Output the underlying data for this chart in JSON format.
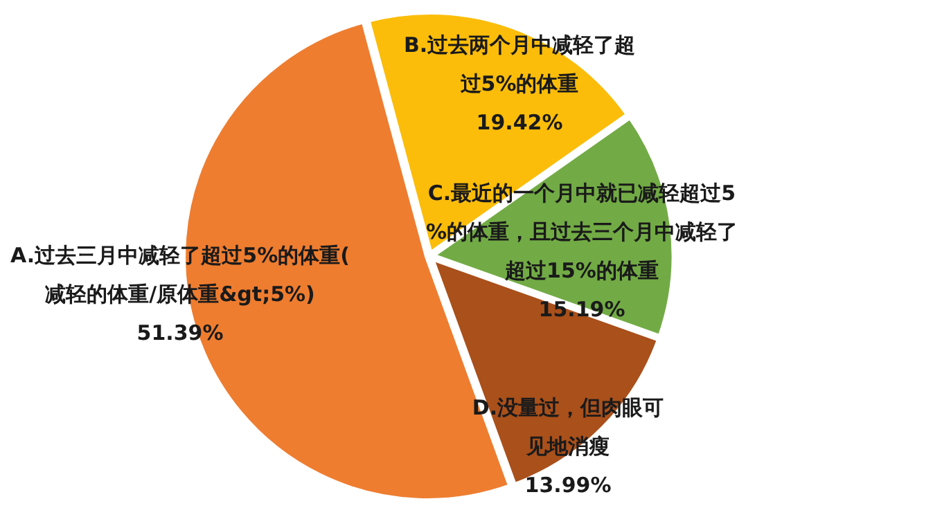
{
  "chart_data": {
    "type": "pie",
    "categories": [
      "B.过去两个月中减轻了超过5%的体重",
      "C.最近的一个月中就已减轻超过5%的体重，且过去三个月中减轻了超过15%的体重",
      "D.没量过，但肉眼可见地消瘦",
      "A.过去三月中减轻了超过5%的体重(减轻的体重/原体重&gt;5%)"
    ],
    "values": [
      19.42,
      15.19,
      13.99,
      51.39
    ],
    "value_labels": [
      "19.42%",
      "15.19%",
      "13.99%",
      "51.39%"
    ],
    "colors": [
      "#fbbd0a",
      "#72ab45",
      "#a9501b",
      "#ee7d30"
    ],
    "legend": false
  }
}
